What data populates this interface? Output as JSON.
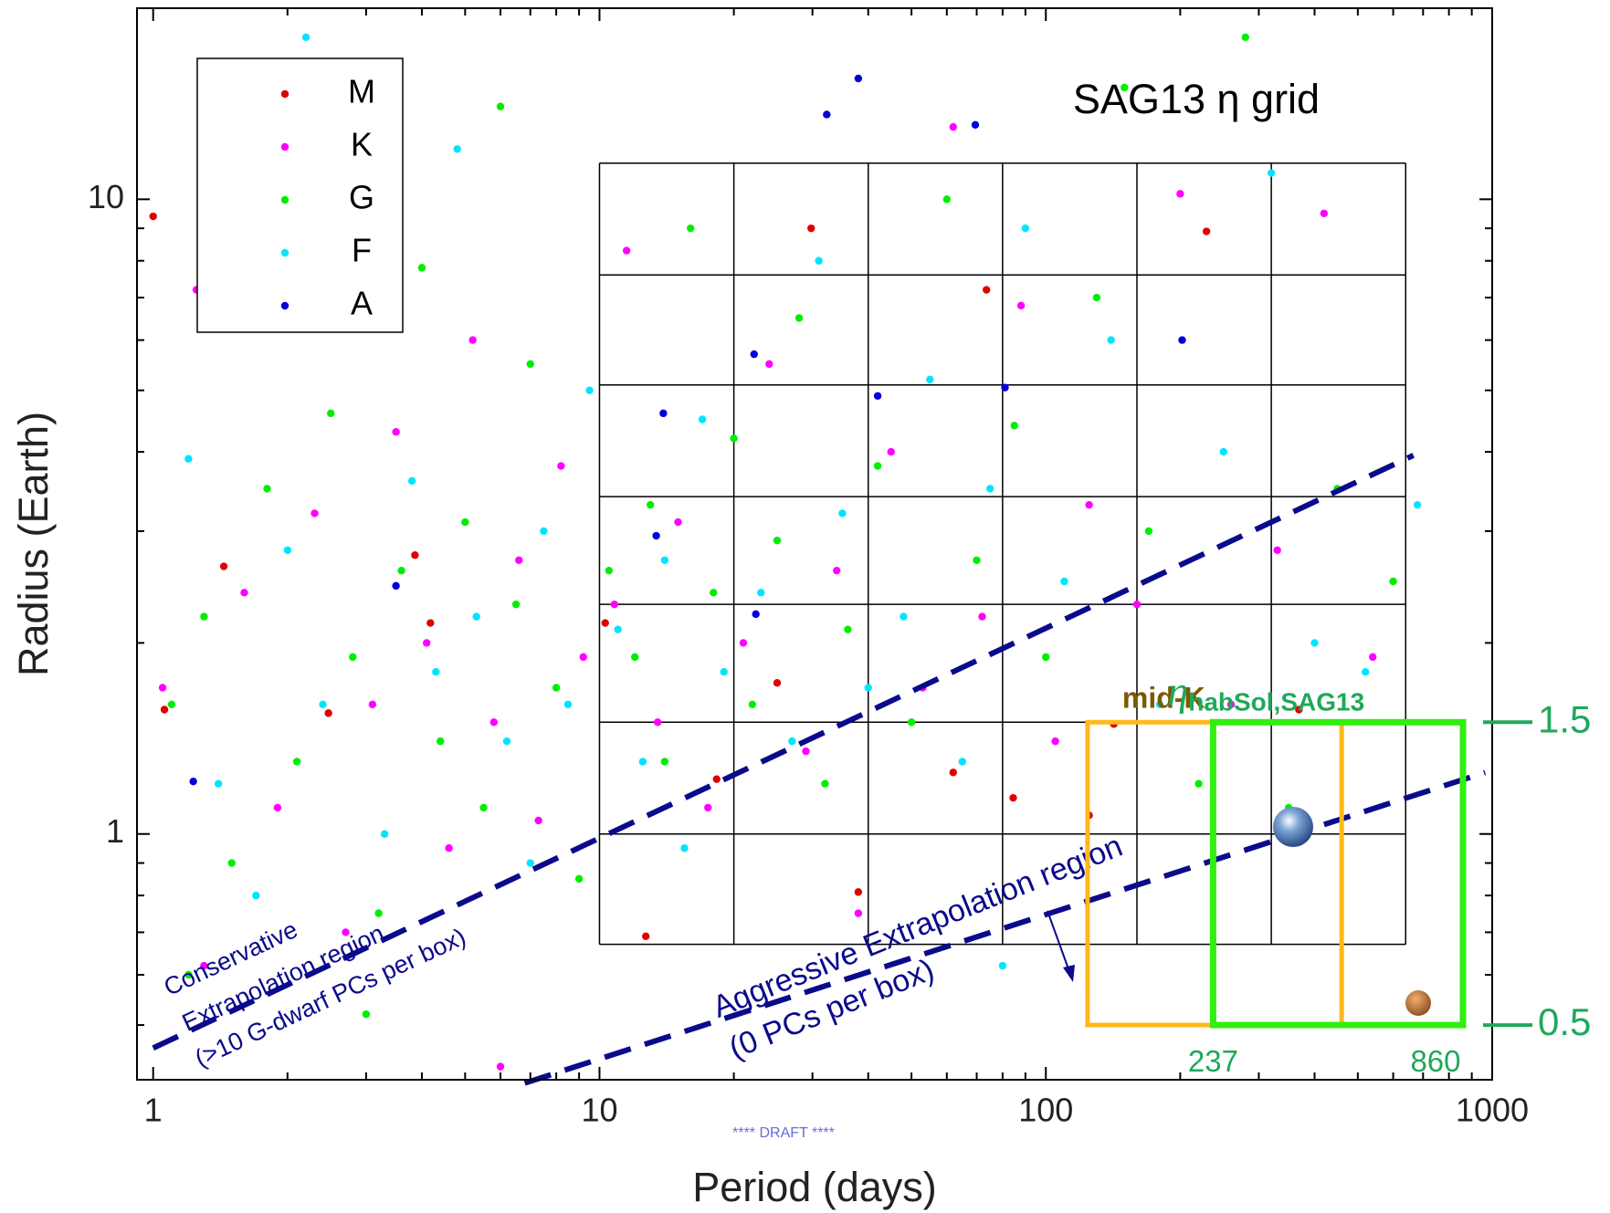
{
  "chart_data": {
    "type": "scatter",
    "title": "SAG13 η grid",
    "x_label": "Period (days)",
    "y_label": "Radius (Earth)",
    "xscale": "log",
    "yscale": "log",
    "xlim": [
      0.92,
      1000
    ],
    "ylim": [
      0.41,
      20
    ],
    "xticks": [
      1,
      10,
      100,
      1000
    ],
    "yticks": [
      1,
      10
    ],
    "xminorticks": [
      2,
      3,
      4,
      5,
      6,
      7,
      8,
      9,
      20,
      30,
      40,
      50,
      60,
      70,
      80,
      90,
      200,
      300,
      400,
      500,
      600,
      700,
      800,
      900
    ],
    "yminorticks": [
      0.5,
      0.6,
      0.7,
      0.8,
      0.9,
      2,
      3,
      4,
      5,
      6,
      7,
      8,
      9
    ],
    "legend": "upper left",
    "series": [
      {
        "name": "M",
        "color": "#e00000",
        "x": [
          1.0,
          1.95,
          29.8,
          229,
          73.6,
          369,
          142,
          125,
          84.5,
          12.7,
          1.06,
          1.44,
          3.86,
          10.3,
          4.18,
          25,
          62,
          38,
          2.47,
          18.3
        ],
        "y": [
          9.4,
          14.7,
          9.0,
          8.9,
          7.2,
          1.57,
          1.49,
          1.07,
          1.14,
          0.69,
          1.57,
          2.64,
          2.75,
          2.15,
          2.15,
          1.73,
          1.25,
          0.81,
          1.55,
          1.22
        ]
      },
      {
        "name": "K",
        "color": "#ff00ff",
        "x": [
          1.05,
          1.25,
          1.6,
          1.9,
          2.3,
          2.7,
          3.1,
          3.5,
          4.1,
          4.6,
          5.2,
          5.8,
          6.6,
          7.3,
          8.2,
          9.2,
          10.8,
          11.5,
          13.5,
          15,
          17.5,
          21,
          24,
          29,
          34,
          38,
          45,
          53,
          62,
          72,
          88,
          105,
          125,
          160,
          200,
          260,
          330,
          420,
          540,
          1.3,
          6
        ],
        "y": [
          1.7,
          7.2,
          2.4,
          1.1,
          3.2,
          0.7,
          1.6,
          4.3,
          2.0,
          0.95,
          6,
          1.5,
          2.7,
          1.05,
          3.8,
          1.9,
          2.3,
          8.3,
          1.5,
          3.1,
          1.1,
          2.0,
          5.5,
          1.35,
          2.6,
          0.75,
          4.0,
          1.7,
          13,
          2.2,
          6.8,
          1.4,
          3.3,
          2.3,
          10.2,
          1.6,
          2.8,
          9.5,
          1.9,
          0.62,
          0.43
        ]
      },
      {
        "name": "G",
        "color": "#00ee00",
        "x": [
          1.1,
          1.3,
          1.5,
          1.8,
          2.1,
          2.5,
          2.8,
          3.2,
          3.6,
          4.0,
          4.4,
          5,
          5.5,
          6,
          6.5,
          7,
          8,
          9,
          10.5,
          12,
          13,
          14,
          16,
          18,
          20,
          22,
          25,
          28,
          32,
          36,
          42,
          50,
          60,
          70,
          85,
          100,
          130,
          170,
          220,
          280,
          350,
          450,
          600,
          150,
          1.2,
          3
        ],
        "y": [
          1.6,
          2.2,
          0.9,
          3.5,
          1.3,
          4.6,
          1.9,
          0.75,
          2.6,
          7.8,
          1.4,
          3.1,
          1.1,
          14,
          2.3,
          5.5,
          1.7,
          0.85,
          2.6,
          1.9,
          3.3,
          1.3,
          9,
          2.4,
          4.2,
          1.6,
          2.9,
          6.5,
          1.2,
          2.1,
          3.8,
          1.5,
          10,
          2.7,
          4.4,
          1.9,
          7,
          3,
          1.2,
          18,
          1.1,
          3.5,
          2.5,
          15,
          0.6,
          0.52
        ]
      },
      {
        "name": "F",
        "color": "#00e5ff",
        "x": [
          1.2,
          1.4,
          1.7,
          2,
          2.4,
          2.9,
          3.3,
          3.8,
          4.3,
          4.8,
          5.3,
          6.2,
          7,
          7.5,
          8.5,
          9.5,
          11,
          12.5,
          14,
          15.5,
          17,
          19,
          23,
          27,
          31,
          35,
          40,
          48,
          55,
          65,
          75,
          90,
          110,
          140,
          180,
          250,
          320,
          400,
          520,
          680,
          2.2,
          80
        ],
        "y": [
          3.9,
          1.2,
          0.8,
          2.8,
          1.6,
          6.5,
          1.0,
          3.6,
          1.8,
          12,
          2.2,
          1.4,
          0.9,
          3.0,
          1.6,
          5,
          2.1,
          1.3,
          2.7,
          0.95,
          4.5,
          1.8,
          2.4,
          1.4,
          8,
          3.2,
          1.7,
          2.2,
          5.2,
          1.3,
          3.5,
          9,
          2.5,
          6,
          1.6,
          4,
          11,
          2,
          1.8,
          3.3,
          18,
          0.62
        ]
      },
      {
        "name": "A",
        "color": "#0000dd",
        "x": [
          38,
          32.3,
          69.5,
          22.2,
          202,
          42,
          13.9,
          81,
          3.5,
          1.23,
          13.4,
          22.4
        ],
        "y": [
          15.5,
          13.6,
          13.1,
          5.7,
          6.0,
          4.9,
          4.6,
          5.05,
          2.46,
          1.21,
          2.95,
          2.22
        ]
      }
    ],
    "sag13_grid": {
      "period_edges": [
        10,
        20,
        40,
        80,
        160,
        320,
        640
      ],
      "radius_edges": [
        0.67,
        1.0,
        1.5,
        2.3,
        3.4,
        5.1,
        7.6,
        11.4
      ]
    },
    "regions": [
      {
        "name": "mid-K",
        "color": "#ffb81c",
        "xlim": [
          124,
          460
        ],
        "ylim": [
          0.5,
          1.5
        ]
      },
      {
        "symbol": "η",
        "subscript": "habSol,SAG13",
        "color": "#33ee11",
        "xlim": [
          237,
          860
        ],
        "ylim": [
          0.5,
          1.5
        ]
      }
    ],
    "extrapolation_lines": [
      {
        "label": [
          "Conservative",
          "Extrapolation region",
          "(>10 G-dwarf PCs per box)"
        ],
        "x": [
          1,
          666
        ],
        "y": [
          0.46,
          3.95
        ]
      },
      {
        "label": [
          "Aggressive Extrapolation region",
          "(0 PCs per box)"
        ],
        "x": [
          6.8,
          964
        ],
        "y": [
          0.405,
          1.25
        ]
      }
    ],
    "watermark": "**** DRAFT ****"
  }
}
